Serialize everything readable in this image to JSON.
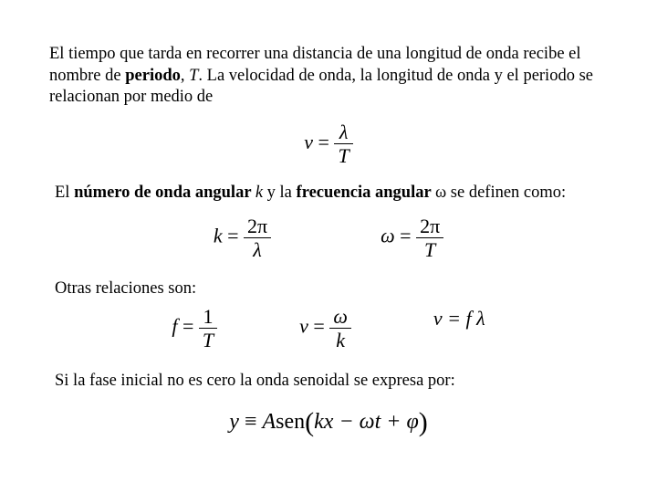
{
  "p1_a": "El tiempo que tarda en recorrer una distancia de una longitud  de onda recibe el nombre de ",
  "p1_b": "periodo",
  "p1_c": ", ",
  "p1_d": "T",
  "p1_e": ". La velocidad de onda, la longitud de onda y el periodo se relacionan por medio de",
  "eq1_lhs": "v",
  "eq1_eq": " = ",
  "eq1_num": "λ",
  "eq1_den": "T",
  "p2_a": "El ",
  "p2_b": "número de onda angular ",
  "p2_c": "k",
  "p2_d": " y la ",
  "p2_e": "frecuencia angular ",
  "p2_f": "ω",
  "p2_g": " se definen como:",
  "eq2a_lhs": "k",
  "eq2a_num": "2π",
  "eq2a_den": "λ",
  "eq2b_lhs": "ω",
  "eq2b_num": "2π",
  "eq2b_den": "T",
  "p3": "Otras relaciones son:",
  "eq3a_lhs": "f",
  "eq3a_num": "1",
  "eq3a_den": "T",
  "eq3b_lhs": "v",
  "eq3b_num": "ω",
  "eq3b_den": "k",
  "eq3c": "v = f λ",
  "p4": "Si la fase inicial no es cero la onda senoidal se expresa por:",
  "eq4_lhs": "y",
  "eq4_eqv": " ≡ ",
  "eq4_A": "A",
  "eq4_sen": "sen",
  "eq4_open": "(",
  "eq4_body": "kx − ωt + φ",
  "eq4_close": ")",
  "colors": {
    "text": "#000000",
    "bg": "#ffffff"
  },
  "fonts": {
    "body_family": "Times New Roman",
    "body_size_pt": 14,
    "eq_size_pt": 17
  }
}
